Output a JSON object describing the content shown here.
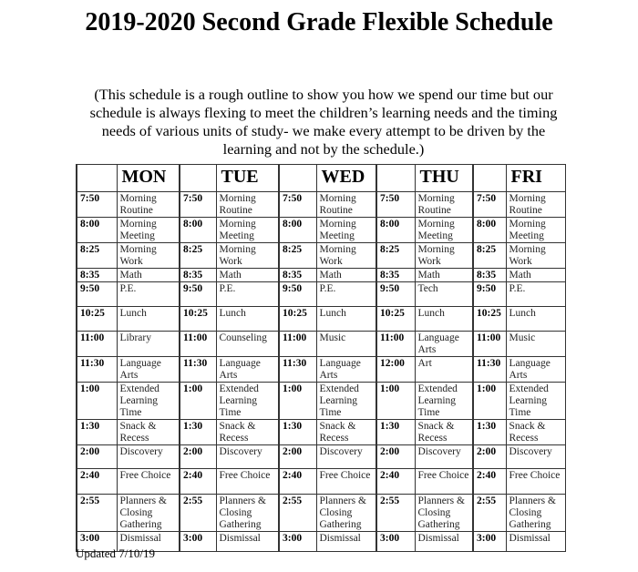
{
  "title": "2019-2020 Second Grade Flexible Schedule",
  "subtitle": "(This schedule is a rough outline to show you how we spend our time but our schedule is always flexing to meet the children’s learning needs and the timing needs of various units of study- we make every attempt to be driven by the learning and not by the schedule.)",
  "days": [
    "MON",
    "TUE",
    "WED",
    "THU",
    "FRI"
  ],
  "rows": [
    [
      [
        "7:50",
        "Morning Routine"
      ],
      [
        "7:50",
        "Morning Routine"
      ],
      [
        "7:50",
        "Morning Routine"
      ],
      [
        "7:50",
        "Morning Routine"
      ],
      [
        "7:50",
        "Morning Routine"
      ]
    ],
    [
      [
        "8:00",
        "Morning Meeting"
      ],
      [
        "8:00",
        "Morning Meeting"
      ],
      [
        "8:00",
        "Morning Meeting"
      ],
      [
        "8:00",
        "Morning Meeting"
      ],
      [
        "8:00",
        "Morning Meeting"
      ]
    ],
    [
      [
        "8:25",
        "Morning Work"
      ],
      [
        "8:25",
        "Morning Work"
      ],
      [
        "8:25",
        "Morning Work"
      ],
      [
        "8:25",
        "Morning Work"
      ],
      [
        "8:25",
        "Morning Work"
      ]
    ],
    [
      [
        "8:35",
        "Math"
      ],
      [
        "8:35",
        "Math"
      ],
      [
        "8:35",
        "Math"
      ],
      [
        "8:35",
        "Math"
      ],
      [
        "8:35",
        "Math"
      ]
    ],
    [
      [
        "9:50",
        "P.E."
      ],
      [
        "9:50",
        "P.E."
      ],
      [
        "9:50",
        "P.E."
      ],
      [
        "9:50",
        "Tech"
      ],
      [
        "9:50",
        "P.E."
      ]
    ],
    [
      [
        "10:25",
        "Lunch"
      ],
      [
        "10:25",
        "Lunch"
      ],
      [
        "10:25",
        "Lunch"
      ],
      [
        "10:25",
        "Lunch"
      ],
      [
        "10:25",
        "Lunch"
      ]
    ],
    [
      [
        "11:00",
        "Library"
      ],
      [
        "11:00",
        "Counseling"
      ],
      [
        "11:00",
        "Music"
      ],
      [
        "11:00",
        "Language Arts"
      ],
      [
        "11:00",
        "Music"
      ]
    ],
    [
      [
        "11:30",
        "Language Arts"
      ],
      [
        "11:30",
        "Language Arts"
      ],
      [
        "11:30",
        "Language Arts"
      ],
      [
        "12:00",
        "Art"
      ],
      [
        "11:30",
        "Language Arts"
      ]
    ],
    [
      [
        "1:00",
        "Extended Learning Time"
      ],
      [
        "1:00",
        "Extended Learning Time"
      ],
      [
        "1:00",
        "Extended Learning Time"
      ],
      [
        "1:00",
        "Extended Learning Time"
      ],
      [
        "1:00",
        "Extended Learning Time"
      ]
    ],
    [
      [
        "1:30",
        "Snack & Recess"
      ],
      [
        "1:30",
        "Snack & Recess"
      ],
      [
        "1:30",
        "Snack & Recess"
      ],
      [
        "1:30",
        "Snack & Recess"
      ],
      [
        "1:30",
        "Snack & Recess"
      ]
    ],
    [
      [
        "2:00",
        "Discovery"
      ],
      [
        "2:00",
        "Discovery"
      ],
      [
        "2:00",
        "Discovery"
      ],
      [
        "2:00",
        "Discovery"
      ],
      [
        "2:00",
        "Discovery"
      ]
    ],
    [
      [
        "2:40",
        "Free Choice"
      ],
      [
        "2:40",
        "Free Choice"
      ],
      [
        "2:40",
        "Free Choice"
      ],
      [
        "2:40",
        "Free Choice"
      ],
      [
        "2:40",
        "Free Choice"
      ]
    ],
    [
      [
        "2:55",
        "Planners & Closing Gathering"
      ],
      [
        "2:55",
        "Planners & Closing Gathering"
      ],
      [
        "2:55",
        "Planners & Closing Gathering"
      ],
      [
        "2:55",
        "Planners & Closing Gathering"
      ],
      [
        "2:55",
        "Planners & Closing Gathering"
      ]
    ],
    [
      [
        "3:00",
        "Dismissal"
      ],
      [
        "3:00",
        "Dismissal"
      ],
      [
        "3:00",
        "Dismissal"
      ],
      [
        "3:00",
        "Dismissal"
      ],
      [
        "3:00",
        "Dismissal"
      ]
    ]
  ],
  "footer": "Updated 7/10/19"
}
